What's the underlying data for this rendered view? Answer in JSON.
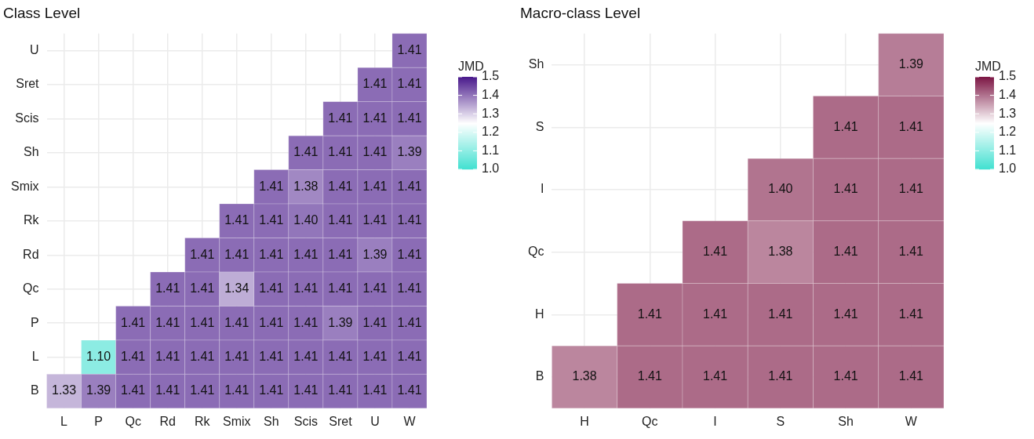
{
  "chart_data": [
    {
      "type": "heatmap",
      "title": "Class Level",
      "clabel": "JMD",
      "categories": [
        "L",
        "P",
        "Qc",
        "Rd",
        "Rk",
        "Smix",
        "Sh",
        "Scis",
        "Sret",
        "U",
        "W"
      ],
      "y_categories": [
        "U",
        "Sret",
        "Scis",
        "Sh",
        "Smix",
        "Rk",
        "Rd",
        "Qc",
        "P",
        "L",
        "B"
      ],
      "cells": [
        [
          null,
          null,
          null,
          null,
          null,
          null,
          null,
          null,
          null,
          null,
          1.41
        ],
        [
          null,
          null,
          null,
          null,
          null,
          null,
          null,
          null,
          null,
          1.41,
          1.41
        ],
        [
          null,
          null,
          null,
          null,
          null,
          null,
          null,
          null,
          1.41,
          1.41,
          1.41
        ],
        [
          null,
          null,
          null,
          null,
          null,
          null,
          null,
          1.41,
          1.41,
          1.41,
          1.39
        ],
        [
          null,
          null,
          null,
          null,
          null,
          null,
          1.41,
          1.38,
          1.41,
          1.41,
          1.41
        ],
        [
          null,
          null,
          null,
          null,
          null,
          1.41,
          1.41,
          1.4,
          1.41,
          1.41,
          1.41
        ],
        [
          null,
          null,
          null,
          null,
          1.41,
          1.41,
          1.41,
          1.41,
          1.41,
          1.39,
          1.41
        ],
        [
          null,
          null,
          null,
          1.41,
          1.41,
          1.34,
          1.41,
          1.41,
          1.41,
          1.41,
          1.41
        ],
        [
          null,
          null,
          1.41,
          1.41,
          1.41,
          1.41,
          1.41,
          1.41,
          1.39,
          1.41,
          1.41
        ],
        [
          null,
          1.1,
          1.41,
          1.41,
          1.41,
          1.41,
          1.41,
          1.41,
          1.41,
          1.41,
          1.41
        ],
        [
          1.33,
          1.39,
          1.41,
          1.41,
          1.41,
          1.41,
          1.41,
          1.41,
          1.41,
          1.41,
          1.41
        ]
      ],
      "cell_labels": [
        [
          null,
          null,
          null,
          null,
          null,
          null,
          null,
          null,
          null,
          null,
          "1.41"
        ],
        [
          null,
          null,
          null,
          null,
          null,
          null,
          null,
          null,
          null,
          "1.41",
          "1.41"
        ],
        [
          null,
          null,
          null,
          null,
          null,
          null,
          null,
          null,
          "1.41",
          "1.41",
          "1.41"
        ],
        [
          null,
          null,
          null,
          null,
          null,
          null,
          null,
          "1.41",
          "1.41",
          "1.41",
          "1.39"
        ],
        [
          null,
          null,
          null,
          null,
          null,
          null,
          "1.41",
          "1.38",
          "1.41",
          "1.41",
          "1.41"
        ],
        [
          null,
          null,
          null,
          null,
          null,
          "1.41",
          "1.41",
          "1.40",
          "1.41",
          "1.41",
          "1.41"
        ],
        [
          null,
          null,
          null,
          null,
          "1.41",
          "1.41",
          "1.41",
          "1.41",
          "1.41",
          "1.39",
          "1.41"
        ],
        [
          null,
          null,
          null,
          "1.41",
          "1.41",
          "1.34",
          "1.41",
          "1.41",
          "1.41",
          "1.41",
          "1.41"
        ],
        [
          null,
          null,
          "1.41",
          "1.41",
          "1.41",
          "1.41",
          "1.41",
          "1.41",
          "1.39",
          "1.41",
          "1.41"
        ],
        [
          null,
          "1.10",
          "1.41",
          "1.41",
          "1.41",
          "1.41",
          "1.41",
          "1.41",
          "1.41",
          "1.41",
          "1.41"
        ],
        [
          "1.33",
          "1.39",
          "1.41",
          "1.41",
          "1.41",
          "1.41",
          "1.41",
          "1.41",
          "1.41",
          "1.41",
          "1.41"
        ]
      ],
      "clim": [
        1.0,
        1.5
      ],
      "cticks": [
        {
          "value": 1.0,
          "label": "1.0"
        },
        {
          "value": 1.1,
          "label": "1.1"
        },
        {
          "value": 1.2,
          "label": "1.2"
        },
        {
          "value": 1.3,
          "label": "1.3"
        },
        {
          "value": 1.4,
          "label": "1.4"
        },
        {
          "value": 1.5,
          "label": "1.5"
        }
      ],
      "data_labels": true,
      "grid": true
    },
    {
      "type": "heatmap",
      "title": "Macro-class Level",
      "clabel": "JMD",
      "categories": [
        "H",
        "Qc",
        "I",
        "S",
        "Sh",
        "W"
      ],
      "y_categories": [
        "Sh",
        "S",
        "I",
        "Qc",
        "H",
        "B"
      ],
      "cells": [
        [
          null,
          null,
          null,
          null,
          null,
          1.39
        ],
        [
          null,
          null,
          null,
          null,
          1.41,
          1.41
        ],
        [
          null,
          null,
          null,
          1.4,
          1.41,
          1.41
        ],
        [
          null,
          null,
          1.41,
          1.38,
          1.41,
          1.41
        ],
        [
          null,
          1.41,
          1.41,
          1.41,
          1.41,
          1.41
        ],
        [
          1.38,
          1.41,
          1.41,
          1.41,
          1.41,
          1.41
        ]
      ],
      "cell_labels": [
        [
          null,
          null,
          null,
          null,
          null,
          "1.39"
        ],
        [
          null,
          null,
          null,
          null,
          "1.41",
          "1.41"
        ],
        [
          null,
          null,
          null,
          "1.40",
          "1.41",
          "1.41"
        ],
        [
          null,
          null,
          "1.41",
          "1.38",
          "1.41",
          "1.41"
        ],
        [
          null,
          "1.41",
          "1.41",
          "1.41",
          "1.41",
          "1.41"
        ],
        [
          "1.38",
          "1.41",
          "1.41",
          "1.41",
          "1.41",
          "1.41"
        ]
      ],
      "clim": [
        1.0,
        1.5
      ],
      "cticks": [
        {
          "value": 1.0,
          "label": "1.0"
        },
        {
          "value": 1.1,
          "label": "1.1"
        },
        {
          "value": 1.2,
          "label": "1.2"
        },
        {
          "value": 1.3,
          "label": "1.3"
        },
        {
          "value": 1.4,
          "label": "1.4"
        },
        {
          "value": 1.5,
          "label": "1.5"
        }
      ],
      "data_labels": true,
      "grid": true
    }
  ]
}
